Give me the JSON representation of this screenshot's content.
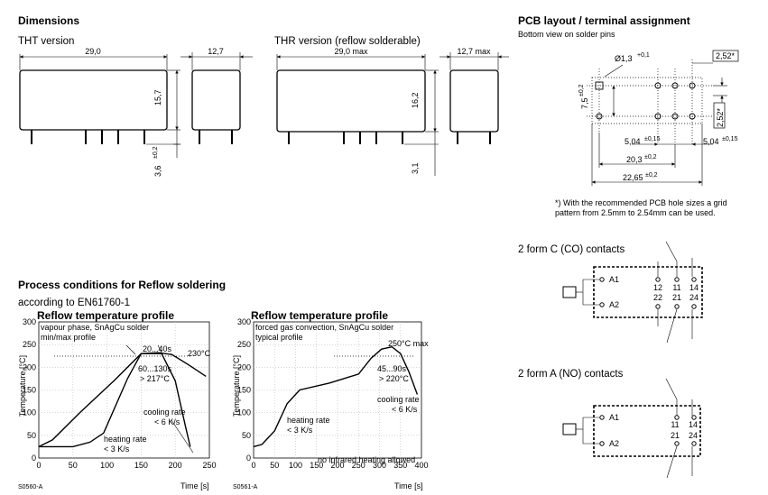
{
  "dimensions": {
    "title": "Dimensions",
    "tht_label": "THT version",
    "thr_label": "THR version (reflow solderable)",
    "tht_width": "29,0",
    "tht_depth": "12,7",
    "tht_height": "15,7",
    "tht_pin": "3,6",
    "tht_pin_tol": "±0,2",
    "thr_width": "29,0 max",
    "thr_depth": "12,7 max",
    "thr_height": "16,2",
    "thr_pin": "3,1"
  },
  "pcb": {
    "title": "PCB layout / terminal assignment",
    "subtitle": "Bottom view on solder pins",
    "hole": "Ø1,3",
    "hole_tol": "+0,1",
    "grid1": "2,52*",
    "grid2": "2,52*",
    "row_spacing": "7,5",
    "row_tol": "±0,2",
    "d1": "5,04",
    "d1_tol": "±0,15",
    "d2": "5,04",
    "d2_tol": "±0,15",
    "d3": "20,3",
    "d3_tol": "±0,2",
    "d4": "22,65",
    "d4_tol": "±0,2",
    "note_line1": "*) With the recommended PCB hole sizes a grid",
    "note_line2": "pattern from 2.5mm to 2.54mm can be used."
  },
  "contacts": {
    "co_title": "2 form C (CO) contacts",
    "no_title": "2 form A (NO) contacts",
    "a1": "A1",
    "a2": "A2",
    "co_top": [
      "12",
      "11",
      "14"
    ],
    "co_bottom": [
      "22",
      "21",
      "24"
    ],
    "no_top": [
      "11",
      "14"
    ],
    "no_bottom": [
      "21",
      "24"
    ]
  },
  "process": {
    "title": "Process conditions for Reflow soldering",
    "subtitle": "according to EN61760-1"
  },
  "chart_data": [
    {
      "type": "line",
      "title": "Reflow temperature profile",
      "subtitle_line1": "vapour phase, SnAgCu solder",
      "subtitle_line2": "min/max profile",
      "xlabel": "Time [s]",
      "ylabel": "Temperature [°C]",
      "xlim": [
        0,
        250
      ],
      "ylim": [
        0,
        300
      ],
      "xticks": [
        "0",
        "50",
        "100",
        "150",
        "200",
        "250"
      ],
      "yticks": [
        "0",
        "50",
        "100",
        "150",
        "200",
        "250",
        "300"
      ],
      "series": [
        {
          "x": [
            0,
            20,
            60,
            110,
            150,
            175,
            195,
            220,
            245
          ],
          "y": [
            25,
            40,
            100,
            170,
            230,
            232,
            228,
            205,
            180
          ]
        },
        {
          "x": [
            0,
            50,
            75,
            95,
            130,
            150,
            180,
            200,
            215,
            222
          ],
          "y": [
            25,
            25,
            35,
            55,
            175,
            230,
            230,
            170,
            70,
            25
          ]
        }
      ],
      "annotations": [
        "20...40s",
        "230°C",
        "60...130s",
        "> 217°C",
        "cooling rate",
        "< 6 K/s",
        "heating rate",
        "< 3 K/s"
      ],
      "code": "S0560-A"
    },
    {
      "type": "line",
      "title": "Reflow temperature profile",
      "subtitle_line1": "forced gas convection, SnAgCu solder",
      "subtitle_line2": "typical profile",
      "xlabel": "Time [s]",
      "ylabel": "Temperature [°C]",
      "xlim": [
        0,
        400
      ],
      "ylim": [
        0,
        300
      ],
      "xticks": [
        "0",
        "50",
        "100",
        "150",
        "200",
        "250",
        "300",
        "350",
        "400"
      ],
      "yticks": [
        "0",
        "50",
        "100",
        "150",
        "200",
        "250",
        "300"
      ],
      "series": [
        {
          "x": [
            0,
            20,
            50,
            80,
            110,
            180,
            250,
            280,
            305,
            330,
            350,
            370,
            390
          ],
          "y": [
            25,
            30,
            60,
            120,
            150,
            165,
            185,
            220,
            240,
            245,
            230,
            190,
            140
          ]
        }
      ],
      "annotations": [
        "250°C max",
        "45...90s",
        "> 220°C",
        "cooling rate",
        "< 6 K/s",
        "heating rate",
        "< 3 K/s",
        "no infrared heating allowed"
      ],
      "code": "S0561-A"
    }
  ]
}
